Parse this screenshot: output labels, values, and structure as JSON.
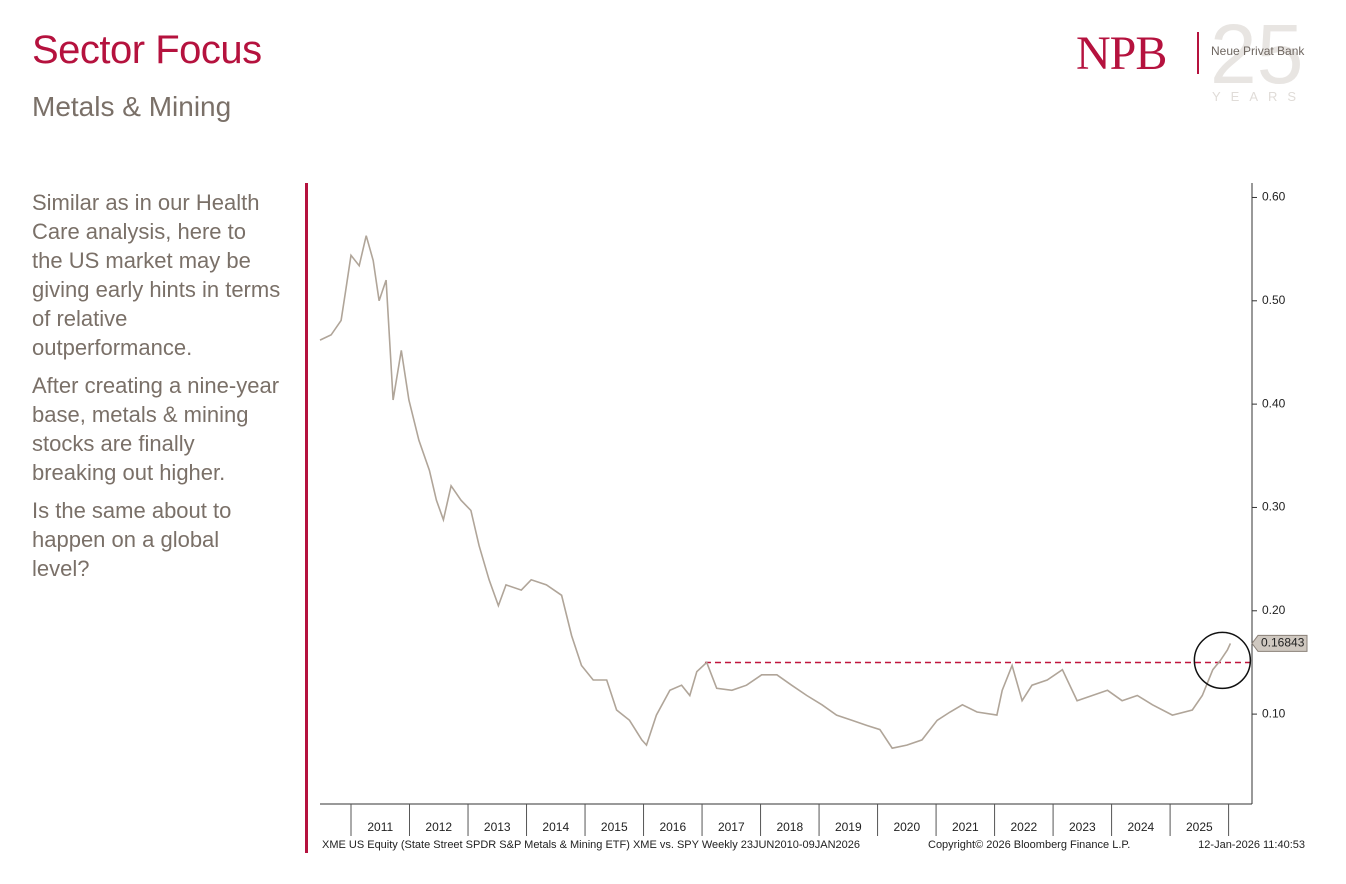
{
  "header": {
    "title": "Sector Focus",
    "subtitle": "Metals & Mining",
    "logo": "NPB",
    "bank_name": "Neue Privat Bank",
    "anniversary": "25",
    "anniversary_unit": "YEARS"
  },
  "body_text": [
    "Similar as in our Health Care analysis, here to the US market may be giving early hints in terms of relative outperformance.",
    "After creating a nine-year base, metals & mining stocks are finally breaking out higher.",
    "Is the same about to happen on a global level?"
  ],
  "chart_data": {
    "type": "line",
    "x": [
      2010.47,
      2010.66,
      2010.83,
      2010.91,
      2011.0,
      2011.14,
      2011.26,
      2011.38,
      2011.48,
      2011.6,
      2011.72,
      2011.86,
      2011.99,
      2012.16,
      2012.34,
      2012.46,
      2012.58,
      2012.71,
      2012.88,
      2013.05,
      2013.19,
      2013.36,
      2013.52,
      2013.65,
      2013.91,
      2014.08,
      2014.34,
      2014.6,
      2014.77,
      2014.94,
      2015.14,
      2015.37,
      2015.54,
      2015.76,
      2015.97,
      2016.05,
      2016.22,
      2016.45,
      2016.65,
      2016.79,
      2016.91,
      2017.08,
      2017.25,
      2017.51,
      2017.76,
      2018.02,
      2018.28,
      2018.53,
      2018.79,
      2019.05,
      2019.3,
      2019.56,
      2019.82,
      2020.04,
      2020.25,
      2020.5,
      2020.76,
      2021.02,
      2021.24,
      2021.45,
      2021.7,
      2022.04,
      2022.13,
      2022.3,
      2022.47,
      2022.64,
      2022.9,
      2023.16,
      2023.41,
      2023.67,
      2023.93,
      2024.18,
      2024.44,
      2024.7,
      2025.04,
      2025.38,
      2025.55,
      2025.73,
      2025.86,
      2025.98,
      2026.03
    ],
    "series": [
      {
        "name": "XME vs. SPY",
        "color": "#b0a599",
        "values": [
          0.462,
          0.467,
          0.481,
          0.51,
          0.544,
          0.534,
          0.563,
          0.539,
          0.5,
          0.52,
          0.404,
          0.452,
          0.404,
          0.365,
          0.336,
          0.307,
          0.288,
          0.321,
          0.307,
          0.297,
          0.263,
          0.23,
          0.205,
          0.225,
          0.22,
          0.23,
          0.225,
          0.215,
          0.176,
          0.147,
          0.133,
          0.133,
          0.104,
          0.094,
          0.075,
          0.07,
          0.099,
          0.123,
          0.128,
          0.118,
          0.141,
          0.15,
          0.125,
          0.123,
          0.128,
          0.138,
          0.138,
          0.128,
          0.118,
          0.109,
          0.099,
          0.094,
          0.089,
          0.085,
          0.067,
          0.07,
          0.075,
          0.094,
          0.102,
          0.109,
          0.102,
          0.099,
          0.123,
          0.147,
          0.113,
          0.128,
          0.133,
          0.143,
          0.113,
          0.118,
          0.123,
          0.113,
          0.118,
          0.109,
          0.099,
          0.104,
          0.118,
          0.143,
          0.152,
          0.162,
          0.16843
        ]
      }
    ],
    "xlim": [
      2010.47,
      2026.4
    ],
    "xticks": [
      2011,
      2012,
      2013,
      2014,
      2015,
      2016,
      2017,
      2018,
      2019,
      2020,
      2021,
      2022,
      2023,
      2024,
      2025
    ],
    "ylim": [
      0.013,
      0.614
    ],
    "yticks": [
      {
        "value": 0.1,
        "label": "0.10"
      },
      {
        "value": 0.2,
        "label": "0.20"
      },
      {
        "value": 0.3,
        "label": "0.30"
      },
      {
        "value": 0.4,
        "label": "0.40"
      },
      {
        "value": 0.5,
        "label": "0.50"
      },
      {
        "value": 0.6,
        "label": "0.60"
      }
    ],
    "hline": {
      "y": 0.15,
      "x": [
        2017.05,
        2026.37
      ],
      "color": "#c0143c"
    },
    "footer": {
      "source": "XME US Equity (State Street SPDR S&P Metals & Mining ETF) XME vs. SPY Weekly 23JUN2010-09JAN2026",
      "copyright": "Copyright© 2026 Bloomberg Finance L.P.",
      "timestamp": "12-Jan-2026 11:40:53"
    }
  }
}
